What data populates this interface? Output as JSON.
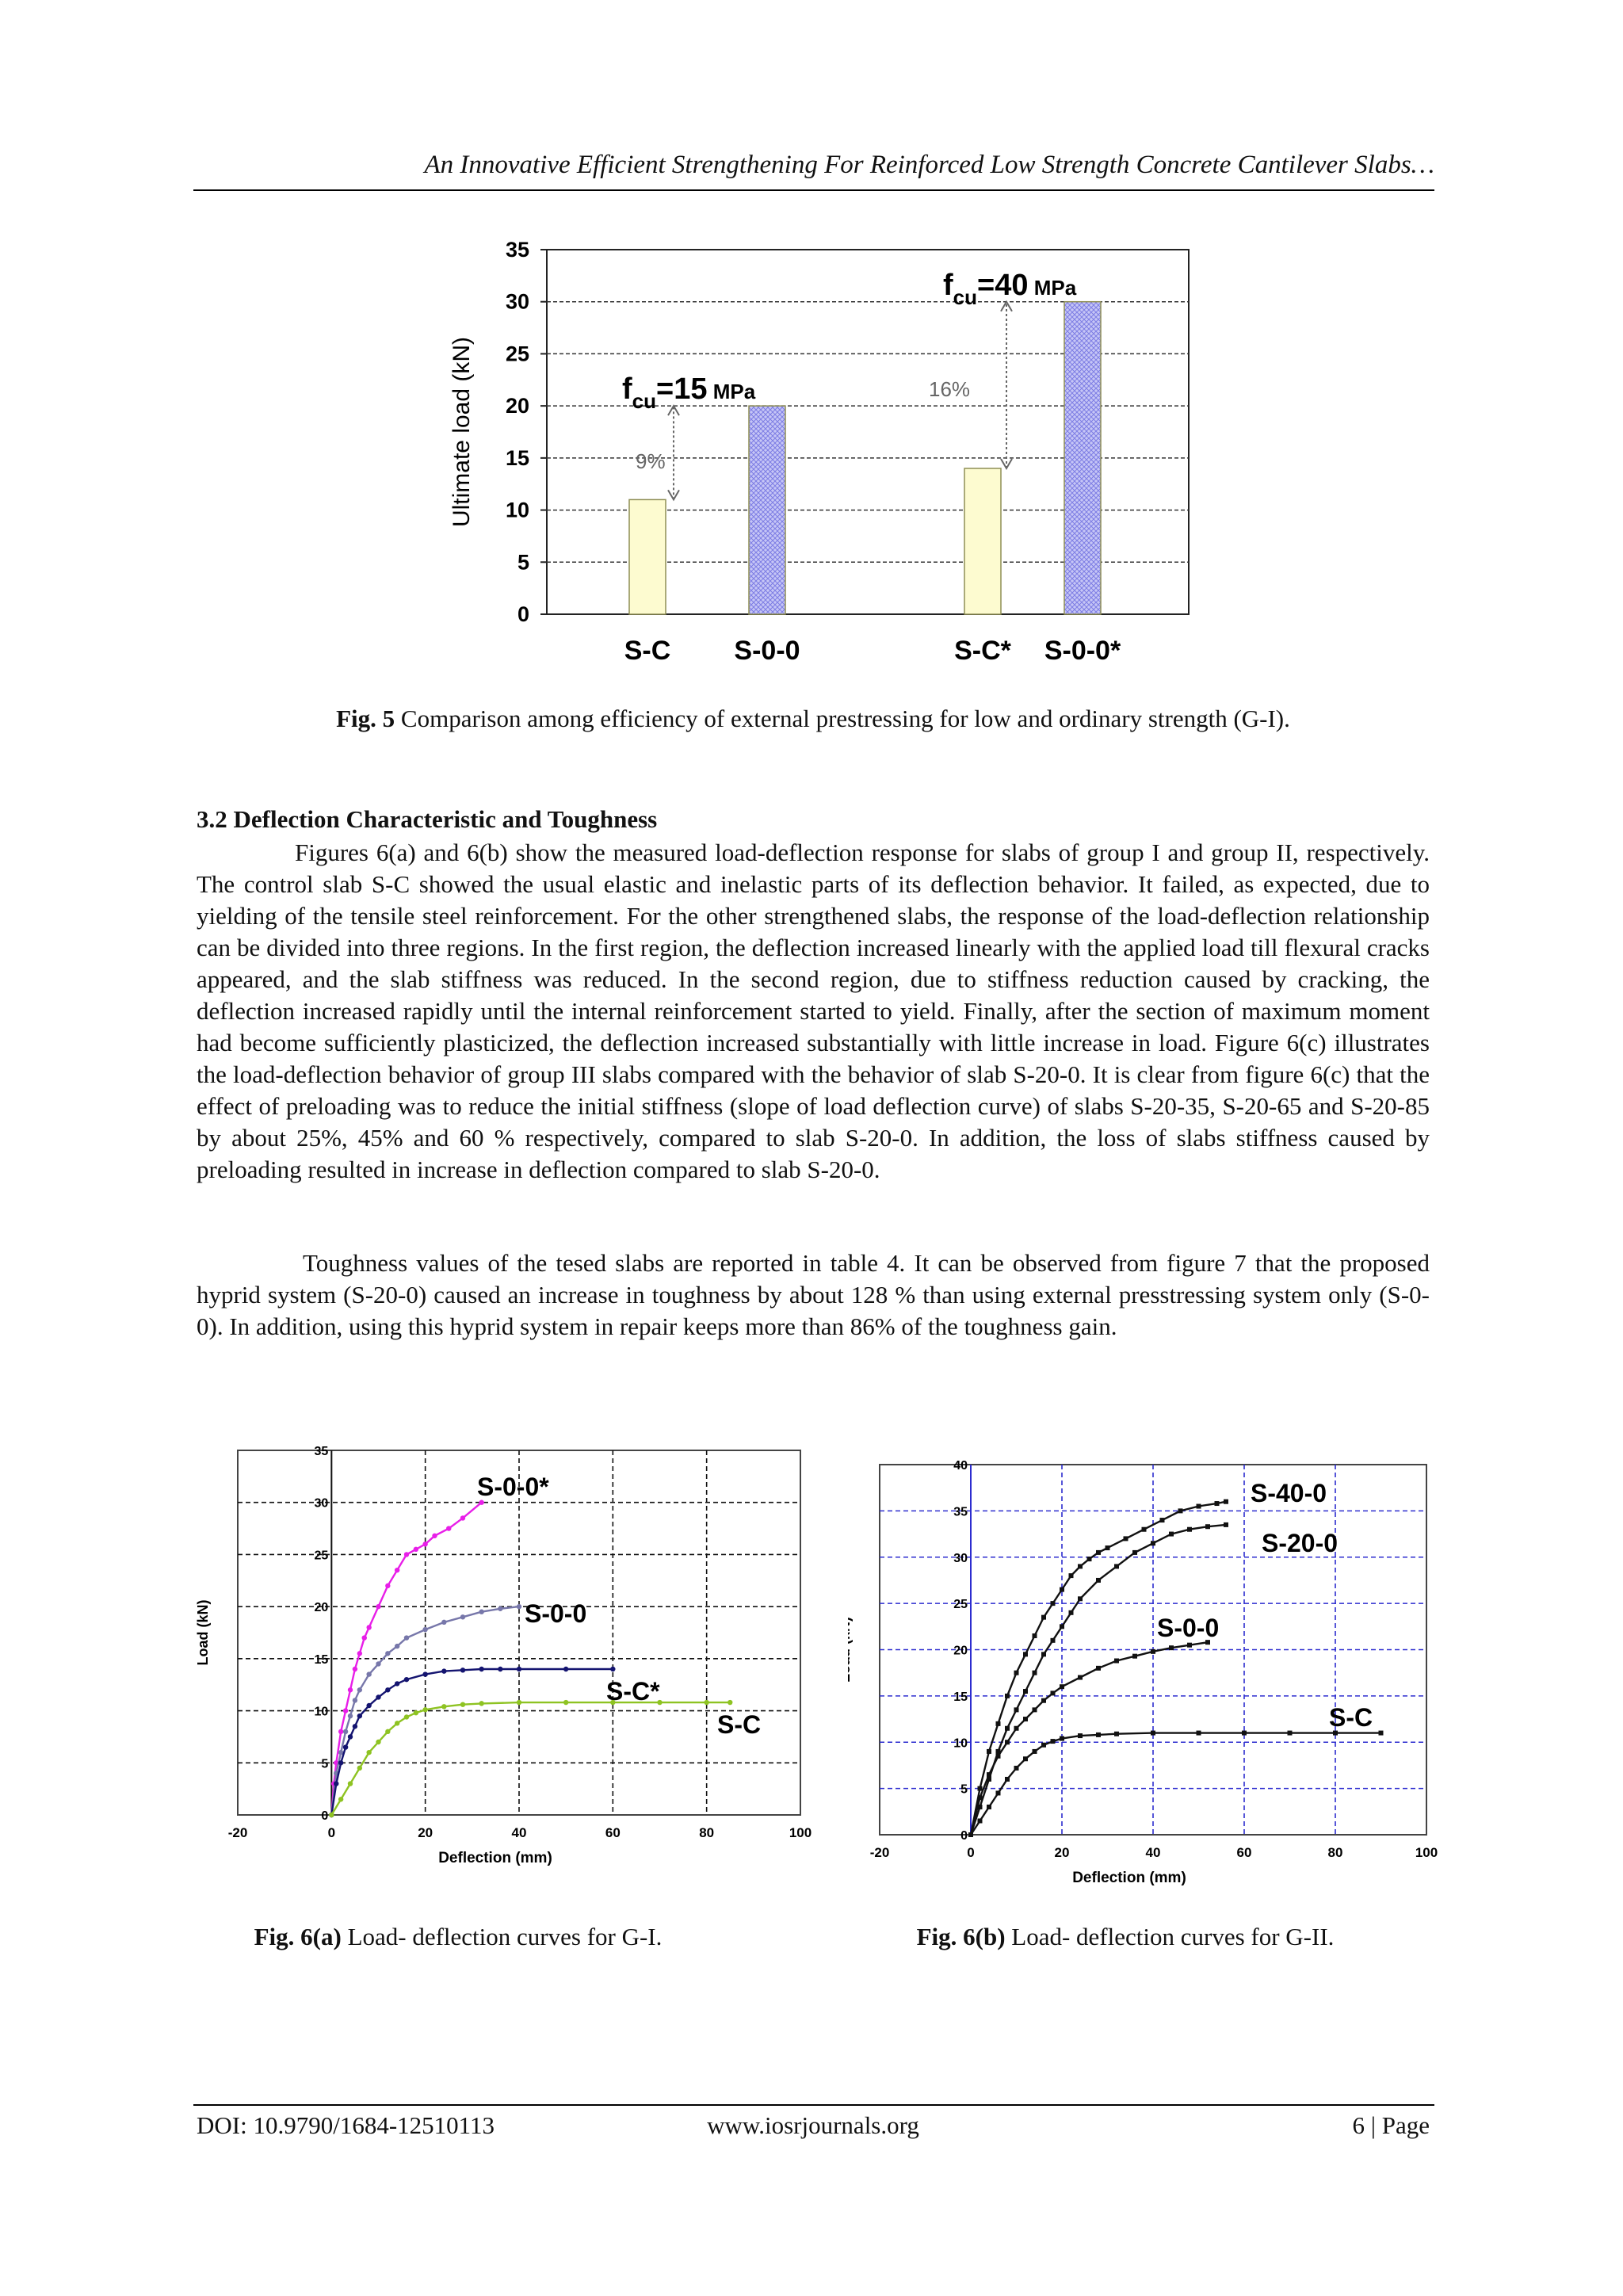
{
  "header": {
    "running_title": "An Innovative Efficient Strengthening For Reinforced Low Strength Concrete Cantilever Slabs…"
  },
  "figures": {
    "fig5": {
      "label": "Fig. 5",
      "caption": " Comparison among efficiency of external prestressing for low and ordinary strength (G-I)."
    },
    "fig6a": {
      "label": "Fig. 6(a)",
      "caption": " Load- deflection curves for G-I."
    },
    "fig6b": {
      "label": "Fig. 6(b)",
      "caption": " Load- deflection curves for G-II."
    }
  },
  "section": {
    "heading": "3.2 Deflection Characteristic and Toughness",
    "paragraph1": "Figures 6(a) and 6(b) show the measured load-deflection response for slabs of group I and group II, respectively. The control slab S-C showed the usual elastic and inelastic parts of its deflection behavior. It failed, as expected, due to yielding of the tensile steel reinforcement. For the other strengthened slabs, the response of the load-deflection relationship can be divided into three regions. In the first region, the deflection increased linearly with the applied load till flexural cracks appeared, and the slab stiffness was reduced. In the second region, due to stiffness reduction caused by cracking, the deflection increased rapidly until the internal reinforcement started to yield. Finally, after the section of maximum moment had become sufficiently plasticized, the deflection increased substantially with little increase in load. Figure 6(c) illustrates the load-deflection behavior of group III slabs compared with the behavior of slab S-20-0. It is clear from figure 6(c) that the effect of preloading was to reduce the initial stiffness (slope of load deflection curve) of slabs S-20-35, S-20-65 and S-20-85 by about 25%, 45% and 60 % respectively, compared to slab S-20-0. In addition, the loss of slabs stiffness caused by preloading resulted in increase in deflection compared to slab S-20-0.",
    "paragraph2": "Toughness values of the tesed slabs are reported in table 4. It can be observed from figure 7 that the proposed hyprid system (S-20-0) caused an increase in toughness by about 128 % than using external presstressing system only (S-0-0). In addition, using this hyprid system in repair keeps more than 86% of the toughness gain."
  },
  "footer": {
    "doi": "DOI: 10.9790/1684-12510113",
    "website": "www.iosrjournals.org",
    "page": "6 | Page"
  },
  "chart_data": [
    {
      "id": "fig5",
      "type": "bar",
      "ylabel": "Ultimate load (kN)",
      "ylim": [
        0,
        35
      ],
      "yticks": [
        0,
        5,
        10,
        15,
        20,
        25,
        30,
        35
      ],
      "grid": true,
      "categories": [
        "S-C",
        "S-0-0",
        "S-C*",
        "S-0-0*"
      ],
      "values": [
        11,
        20,
        14,
        30
      ],
      "bar_colors": [
        "#fdfbd0",
        "#b8b8f2",
        "#fdfbd0",
        "#b8b8f2"
      ],
      "annotations": [
        {
          "label_main": "f",
          "label_sub": "cu",
          "label_rest": "=15",
          "label_unit": " MPa",
          "percent": "9%",
          "from": 11,
          "to": 20
        },
        {
          "label_main": "f",
          "label_sub": "cu",
          "label_rest": "=40",
          "label_unit": " MPa",
          "percent": "16%",
          "from": 14,
          "to": 30
        }
      ]
    },
    {
      "id": "fig6a",
      "type": "line",
      "xlabel": "Deflection (mm)",
      "ylabel": "Load (kN)",
      "xlim": [
        -20,
        100
      ],
      "ylim": [
        0,
        35
      ],
      "xticks": [
        -20,
        0,
        20,
        40,
        60,
        80,
        100
      ],
      "yticks": [
        0,
        5,
        10,
        15,
        20,
        25,
        30,
        35
      ],
      "grid": true,
      "series": [
        {
          "name": "S-0-0*",
          "color": "#e81ee8",
          "x": [
            0,
            0.5,
            1,
            2,
            3,
            4,
            5,
            6,
            7,
            8,
            10,
            12,
            14,
            16,
            18,
            20,
            22,
            25,
            28,
            32
          ],
          "y": [
            0,
            3,
            5,
            8,
            10,
            12,
            14,
            15.5,
            17,
            18,
            20,
            22,
            23.5,
            25,
            25.5,
            26,
            26.8,
            27.5,
            28.5,
            30
          ]
        },
        {
          "name": "S-0-0",
          "color": "#7777aa",
          "x": [
            0,
            1,
            2,
            3,
            4,
            5,
            6,
            8,
            10,
            12,
            14,
            16,
            20,
            24,
            28,
            32,
            36,
            40
          ],
          "y": [
            0,
            4,
            6,
            8,
            9.5,
            11,
            12,
            13.5,
            14.5,
            15.5,
            16.2,
            17,
            17.8,
            18.5,
            19,
            19.5,
            19.8,
            20
          ]
        },
        {
          "name": "S-C*",
          "color": "#141470",
          "x": [
            0,
            1,
            2,
            3,
            4,
            5,
            6,
            8,
            10,
            12,
            14,
            16,
            20,
            24,
            28,
            32,
            36,
            40,
            50,
            60
          ],
          "y": [
            0,
            3,
            5,
            6.5,
            7.5,
            8.5,
            9.5,
            10.5,
            11.3,
            12,
            12.6,
            13,
            13.5,
            13.8,
            13.9,
            14,
            14,
            14,
            14,
            14
          ]
        },
        {
          "name": "S-C",
          "color": "#8ec322",
          "x": [
            0,
            2,
            4,
            6,
            8,
            10,
            12,
            14,
            16,
            18,
            20,
            24,
            28,
            32,
            40,
            50,
            60,
            70,
            80,
            85
          ],
          "y": [
            0,
            1.5,
            3,
            4.5,
            6,
            7,
            8,
            8.8,
            9.4,
            9.8,
            10.1,
            10.4,
            10.6,
            10.7,
            10.8,
            10.8,
            10.8,
            10.8,
            10.8,
            10.8
          ]
        }
      ]
    },
    {
      "id": "fig6b",
      "type": "line",
      "xlabel": "Deflection (mm)",
      "ylabel": "Load (kN)",
      "xlim": [
        -20,
        100
      ],
      "ylim": [
        0,
        40
      ],
      "xticks": [
        -20,
        0,
        20,
        40,
        60,
        80,
        100
      ],
      "yticks": [
        0,
        5,
        10,
        15,
        20,
        25,
        30,
        35,
        40
      ],
      "grid": true,
      "series": [
        {
          "name": "S-40-0",
          "color": "#111111",
          "x": [
            0,
            2,
            4,
            6,
            8,
            10,
            12,
            14,
            16,
            18,
            20,
            22,
            24,
            26,
            28,
            30,
            34,
            38,
            42,
            46,
            50,
            54,
            56
          ],
          "y": [
            0,
            5,
            9,
            12,
            15,
            17.5,
            19.5,
            21.5,
            23.5,
            25,
            26.5,
            28,
            29,
            29.8,
            30.5,
            31,
            32,
            33,
            34,
            35,
            35.5,
            35.8,
            36
          ]
        },
        {
          "name": "S-20-0",
          "color": "#111111",
          "x": [
            0,
            2,
            4,
            6,
            8,
            10,
            12,
            14,
            16,
            18,
            20,
            22,
            24,
            28,
            32,
            36,
            40,
            44,
            48,
            52,
            56
          ],
          "y": [
            0,
            3,
            6,
            9,
            11.5,
            13.5,
            15.5,
            17.5,
            19.5,
            21,
            22.5,
            24,
            25.5,
            27.5,
            29,
            30.5,
            31.5,
            32.5,
            33,
            33.3,
            33.5
          ]
        },
        {
          "name": "S-0-0",
          "color": "#111111",
          "x": [
            0,
            2,
            4,
            6,
            8,
            10,
            12,
            14,
            16,
            18,
            20,
            24,
            28,
            32,
            36,
            40,
            44,
            48,
            52
          ],
          "y": [
            0,
            4,
            6.5,
            8.5,
            10,
            11.5,
            12.5,
            13.5,
            14.5,
            15.3,
            16,
            17,
            18,
            18.8,
            19.3,
            19.8,
            20.2,
            20.5,
            20.8
          ]
        },
        {
          "name": "S-C",
          "color": "#111111",
          "x": [
            0,
            2,
            4,
            6,
            8,
            10,
            12,
            14,
            16,
            18,
            20,
            24,
            28,
            32,
            40,
            50,
            60,
            70,
            80,
            90
          ],
          "y": [
            0,
            1.5,
            3,
            4.5,
            6,
            7.2,
            8.2,
            9,
            9.7,
            10.1,
            10.4,
            10.7,
            10.8,
            10.9,
            11,
            11,
            11,
            11,
            11,
            11
          ]
        }
      ]
    }
  ]
}
